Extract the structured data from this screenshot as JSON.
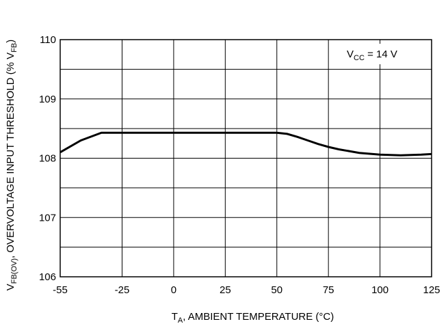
{
  "chart_data": {
    "type": "line",
    "x": [
      -55,
      -45,
      -35,
      -25,
      0,
      25,
      50,
      55,
      60,
      65,
      70,
      75,
      80,
      90,
      100,
      110,
      120,
      125
    ],
    "series": [
      {
        "color": "#000000",
        "values": [
          108.1,
          108.3,
          108.43,
          108.43,
          108.43,
          108.43,
          108.43,
          108.41,
          108.36,
          108.3,
          108.24,
          108.19,
          108.15,
          108.09,
          108.06,
          108.05,
          108.06,
          108.07
        ]
      }
    ],
    "xlim": [
      -55,
      125
    ],
    "xticks": [
      -55,
      -25,
      0,
      25,
      50,
      75,
      100,
      125
    ],
    "ylim": [
      106,
      110
    ],
    "yticks": [
      106,
      107,
      108,
      109,
      110
    ],
    "minor_yticks": [
      106.5,
      107.5,
      108.5,
      109.5
    ],
    "grid": true,
    "xlabel": [
      {
        "text": "T"
      },
      {
        "text": "A",
        "sub": true
      },
      {
        "text": ", AMBIENT TEMPERATURE (°C)"
      }
    ],
    "ylabel": [
      {
        "text": "V"
      },
      {
        "text": "FB(OV)",
        "sub": true
      },
      {
        "text": ", OVERVOLTAGE INPUT THRESHOLD (% V"
      },
      {
        "text": "FB",
        "sub": true
      },
      {
        "text": ")"
      }
    ],
    "annotation": [
      {
        "text": "V"
      },
      {
        "text": "CC",
        "sub": true
      },
      {
        "text": " = 14 V"
      }
    ]
  }
}
